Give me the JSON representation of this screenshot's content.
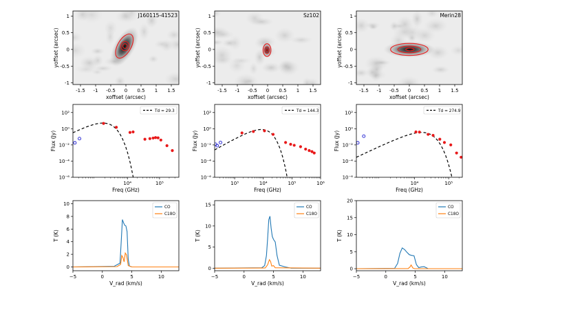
{
  "chart_data": [
    {
      "type": "heatmap",
      "row": 0,
      "col": 0,
      "source_label": "J160115-41523",
      "xlabel": "xoffset (arcsec)",
      "ylabel": "yoffset (arcsec)",
      "xlim": [
        -1.75,
        1.75
      ],
      "ylim": [
        -1.05,
        1.15
      ],
      "xticks": [
        -1.5,
        -1,
        -0.5,
        0,
        0.5,
        1,
        1.5
      ],
      "xtick_labels": [
        "-1.5",
        "-1",
        "-0.5",
        "0",
        "0.5",
        "1",
        "1.5"
      ],
      "yticks": [
        -1,
        -0.5,
        0,
        0.5,
        1
      ],
      "ytick_labels": [
        "-1",
        "-0.5",
        "0",
        "0.5",
        "1"
      ],
      "source": {
        "x": -0.05,
        "y": 0.08,
        "sx": 0.18,
        "sy": 0.35,
        "angle": 30
      },
      "contours": [
        {
          "x": -0.05,
          "y": 0.1,
          "rx": 0.22,
          "ry": 0.4,
          "angle": 30
        },
        {
          "x": -0.03,
          "y": 0.1,
          "rx": 0.14,
          "ry": 0.14,
          "angle": 0
        },
        {
          "x": -0.03,
          "y": 0.1,
          "rx": 0.07,
          "ry": 0.07,
          "angle": 0
        }
      ]
    },
    {
      "type": "heatmap",
      "row": 0,
      "col": 1,
      "source_label": "Sz102",
      "xlabel": "xoffset (arcsec)",
      "ylabel": "yoffset (arcsec)",
      "xlim": [
        -1.75,
        1.75
      ],
      "ylim": [
        -1.05,
        1.15
      ],
      "xticks": [
        -1.5,
        -1,
        -0.5,
        0,
        0.5,
        1,
        1.5
      ],
      "xtick_labels": [
        "-1.5",
        "-1",
        "-0.5",
        "0",
        "0.5",
        "1",
        "1.5"
      ],
      "yticks": [
        -1,
        -0.5,
        0,
        0.5,
        1
      ],
      "ytick_labels": [
        "-1",
        "-0.5",
        "0",
        "0.5",
        "1"
      ],
      "source": {
        "x": -0.02,
        "y": -0.02,
        "sx": 0.09,
        "sy": 0.12,
        "angle": 0
      },
      "contours": [
        {
          "x": -0.02,
          "y": -0.02,
          "rx": 0.13,
          "ry": 0.19,
          "angle": 0
        },
        {
          "x": -0.02,
          "y": -0.02,
          "rx": 0.08,
          "ry": 0.1,
          "angle": 0
        },
        {
          "x": -0.02,
          "y": -0.02,
          "rx": 0.03,
          "ry": 0.04,
          "angle": 0
        }
      ]
    },
    {
      "type": "heatmap",
      "row": 0,
      "col": 2,
      "source_label": "Merin28",
      "xlabel": "xoffset (arcsec)",
      "ylabel": "yoffset (arcsec)",
      "xlim": [
        -1.75,
        1.75
      ],
      "ylim": [
        -1.05,
        1.15
      ],
      "xticks": [
        -1.5,
        -1,
        -0.5,
        0,
        0.5,
        1,
        1.5
      ],
      "xtick_labels": [
        "-1.5",
        "-1",
        "-0.5",
        "0",
        "0.5",
        "1",
        "1.5"
      ],
      "yticks": [
        -1,
        -0.5,
        0,
        0.5,
        1
      ],
      "ytick_labels": [
        "-1",
        "-0.5",
        "0",
        "0.5",
        "1"
      ],
      "source": {
        "x": 0.0,
        "y": 0.0,
        "sx": 0.45,
        "sy": 0.13,
        "angle": 0
      },
      "contours": [
        {
          "x": 0.0,
          "y": 0.0,
          "rx": 0.62,
          "ry": 0.18,
          "angle": 0
        },
        {
          "x": 0.0,
          "y": 0.0,
          "rx": 0.38,
          "ry": 0.1,
          "angle": 0
        },
        {
          "x": 0.02,
          "y": 0.0,
          "rx": 0.14,
          "ry": 0.04,
          "angle": 0
        }
      ]
    },
    {
      "type": "scatter",
      "row": 1,
      "col": 0,
      "xlabel": "Freq (GHz)",
      "ylabel": "Flux (Jy)",
      "xscale": "log",
      "yscale": "log",
      "xlim": [
        200,
        400000
      ],
      "ylim": [
        1e-06,
        1000
      ],
      "xticks": [
        10000,
        100000
      ],
      "xtick_labels": [
        "10⁴",
        "10⁵"
      ],
      "yticks": [
        1e-06,
        0.0001,
        0.01,
        1,
        100
      ],
      "ytick_labels": [
        "10⁻⁶",
        "10⁻⁴",
        "10⁻²",
        "10⁰",
        "10²"
      ],
      "legend": {
        "label": "Td = 29.3",
        "location": "top-right"
      },
      "model_curve": {
        "style": "dashed",
        "Td": 29.3,
        "peak": 5,
        "x_peak": 1750
      },
      "observed": {
        "x": [
          1800,
          4500,
          12000,
          15000,
          35000,
          50000,
          63000,
          75000,
          90000,
          110000,
          170000,
          250000
        ],
        "y": [
          4.5,
          1.5,
          0.35,
          0.4,
          0.05,
          0.06,
          0.07,
          0.08,
          0.075,
          0.04,
          0.008,
          0.002
        ]
      },
      "open_points": {
        "x": [
          230,
          320
        ],
        "y": [
          0.018,
          0.06
        ]
      }
    },
    {
      "type": "scatter",
      "row": 1,
      "col": 1,
      "xlabel": "Freq (GHz)",
      "ylabel": "Flux (Jy)",
      "xscale": "log",
      "yscale": "log",
      "xlim": [
        200,
        1000000
      ],
      "ylim": [
        1e-06,
        1000
      ],
      "xticks": [
        1000,
        10000,
        100000,
        1000000
      ],
      "xtick_labels": [
        "10³",
        "10⁴",
        "10⁵",
        "10⁶"
      ],
      "yticks": [
        1e-06,
        0.0001,
        0.01,
        1,
        100
      ],
      "ytick_labels": [
        "10⁻⁶",
        "10⁻⁴",
        "10⁻²",
        "10⁰",
        "10²"
      ],
      "legend": {
        "label": "Td = 144.3",
        "location": "top-right"
      },
      "model_curve": {
        "style": "dashed",
        "Td": 144.3,
        "peak": 0.8,
        "x_peak": 8600
      },
      "observed": {
        "x": [
          1800,
          4500,
          11000,
          22000,
          60000,
          90000,
          120000,
          200000,
          300000,
          400000,
          500000,
          600000
        ],
        "y": [
          0.3,
          0.45,
          0.55,
          0.2,
          0.02,
          0.012,
          0.009,
          0.006,
          0.003,
          0.002,
          0.0015,
          0.001
        ]
      },
      "open_points": {
        "x": [
          215,
          245,
          320
        ],
        "y": [
          0.012,
          0.008,
          0.02
        ]
      }
    },
    {
      "type": "scatter",
      "row": 1,
      "col": 2,
      "xlabel": "Freq (GHz)",
      "ylabel": "Flux (Jy)",
      "xscale": "log",
      "yscale": "log",
      "xlim": [
        200,
        250000
      ],
      "ylim": [
        1e-06,
        1000
      ],
      "xticks": [
        10000,
        100000
      ],
      "xtick_labels": [
        "10⁴",
        "10⁵"
      ],
      "yticks": [
        1e-06,
        0.0001,
        0.01,
        1,
        100
      ],
      "ytick_labels": [
        "10⁻⁶",
        "10⁻⁴",
        "10⁻²",
        "10⁰",
        "10²"
      ],
      "legend": {
        "label": "Td = 274.9",
        "location": "top-right"
      },
      "model_curve": {
        "style": "dashed",
        "Td": 274.9,
        "peak": 0.35,
        "x_peak": 16300
      },
      "observed": {
        "x": [
          11000,
          14000,
          25000,
          35000,
          55000,
          75000,
          115000,
          170000,
          230000
        ],
        "y": [
          0.4,
          0.38,
          0.2,
          0.15,
          0.05,
          0.02,
          0.01,
          0.001,
          0.0003
        ]
      },
      "open_points": {
        "x": [
          220,
          330
        ],
        "y": [
          0.018,
          0.12
        ]
      }
    },
    {
      "type": "line",
      "row": 2,
      "col": 0,
      "xlabel": "V_rad (km/s)",
      "ylabel": "T (K)",
      "xlim": [
        -5,
        13
      ],
      "ylim": [
        -0.6,
        10.5
      ],
      "xticks": [
        -5,
        0,
        5,
        10
      ],
      "xtick_labels": [
        "−5",
        "0",
        "5",
        "10"
      ],
      "yticks": [
        0,
        2,
        4,
        6,
        8,
        10
      ],
      "ytick_labels": [
        "0",
        "2",
        "4",
        "6",
        "8",
        "10"
      ],
      "legend_location": "top-right",
      "series": [
        {
          "name": "CO",
          "color": "#1f77b4",
          "x": [
            -5,
            2,
            3,
            3.2,
            3.4,
            3.6,
            3.8,
            4.0,
            4.2,
            4.4,
            4.6,
            5.0,
            13
          ],
          "y": [
            0,
            0.1,
            0.6,
            4.0,
            7.5,
            7.0,
            6.6,
            6.5,
            5.6,
            1.2,
            0.15,
            0,
            0
          ]
        },
        {
          "name": "C18O",
          "color": "#ff7f0e",
          "x": [
            -5,
            2.5,
            3.1,
            3.3,
            3.5,
            3.7,
            3.9,
            4.1,
            4.4,
            5.0,
            13
          ],
          "y": [
            0,
            0.05,
            0.4,
            1.8,
            1.5,
            0.8,
            2.2,
            1.9,
            0.2,
            0,
            0
          ]
        }
      ]
    },
    {
      "type": "line",
      "row": 2,
      "col": 1,
      "xlabel": "V_rad (km/s)",
      "ylabel": "T (K)",
      "xlim": [
        -5,
        13
      ],
      "ylim": [
        -0.6,
        16
      ],
      "xticks": [
        -5,
        0,
        5,
        10
      ],
      "xtick_labels": [
        "−5",
        "0",
        "5",
        "10"
      ],
      "yticks": [
        0,
        5,
        10,
        15
      ],
      "ytick_labels": [
        "0",
        "5",
        "10",
        "15"
      ],
      "legend_location": "top-right",
      "series": [
        {
          "name": "CO",
          "color": "#1f77b4",
          "x": [
            -5,
            3,
            3.5,
            3.8,
            4.0,
            4.2,
            4.4,
            4.6,
            4.8,
            5.0,
            5.3,
            5.6,
            6.0,
            7.0,
            8.0,
            13
          ],
          "y": [
            0,
            0.1,
            0.6,
            3.0,
            7.0,
            11.5,
            12.3,
            9.5,
            7.5,
            6.8,
            6.2,
            3.0,
            0.7,
            0.3,
            0,
            0
          ]
        },
        {
          "name": "C18O",
          "color": "#ff7f0e",
          "x": [
            -5,
            3.6,
            4.0,
            4.3,
            4.5,
            4.7,
            5.0,
            5.3,
            13
          ],
          "y": [
            0,
            0.05,
            0.8,
            2.0,
            1.6,
            0.5,
            0.6,
            0.1,
            0
          ]
        }
      ]
    },
    {
      "type": "line",
      "row": 2,
      "col": 2,
      "xlabel": "V_rad (km/s)",
      "ylabel": "T (K)",
      "xlim": [
        -5,
        13
      ],
      "ylim": [
        -0.6,
        20
      ],
      "xticks": [
        -5,
        0,
        5,
        10
      ],
      "xtick_labels": [
        "−5",
        "0",
        "5",
        "10"
      ],
      "yticks": [
        0,
        5,
        10,
        15,
        20
      ],
      "ytick_labels": [
        "0",
        "5",
        "10",
        "15",
        "20"
      ],
      "legend_location": "top-right",
      "series": [
        {
          "name": "CO",
          "color": "#1f77b4",
          "x": [
            -5,
            1.5,
            2.0,
            2.4,
            2.8,
            3.2,
            3.6,
            4.0,
            4.4,
            4.8,
            5.2,
            5.6,
            6.0,
            6.5,
            7.2,
            13
          ],
          "y": [
            0,
            0.1,
            1.5,
            4.5,
            6.1,
            5.6,
            4.8,
            4.1,
            3.9,
            3.8,
            1.2,
            0.3,
            0.5,
            0.6,
            0,
            0
          ]
        },
        {
          "name": "C18O",
          "color": "#ff7f0e",
          "x": [
            -5,
            3.8,
            4.1,
            4.3,
            4.6,
            4.9,
            13
          ],
          "y": [
            0,
            0.05,
            0.5,
            1.1,
            0.2,
            0,
            0
          ]
        }
      ]
    }
  ]
}
